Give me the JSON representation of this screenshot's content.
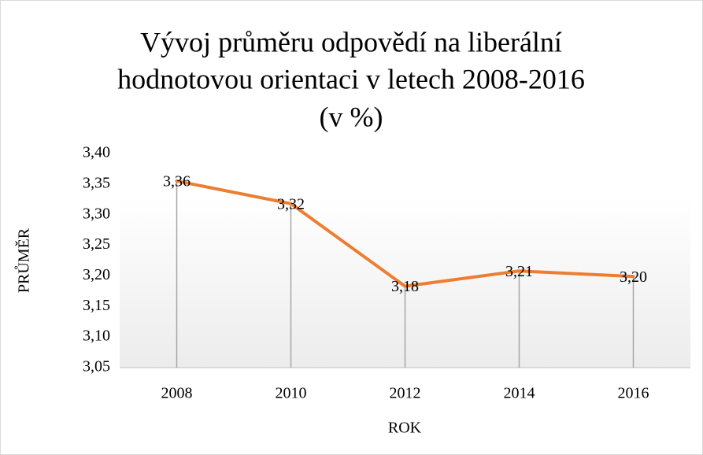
{
  "chart_data": {
    "type": "line",
    "title": [
      "Vývoj průměru odpovědí na liberální",
      "hodnotovou orientaci v letech 2008-2016",
      "(v %)"
    ],
    "x_label": "ROK",
    "y_label": "PRŮMĚR",
    "categories": [
      "2008",
      "2010",
      "2012",
      "2014",
      "2016"
    ],
    "series": [
      {
        "name": "PRŮMĚR",
        "color": "#ed7d31",
        "values": [
          3.355,
          3.318,
          3.183,
          3.208,
          3.199
        ],
        "value_labels": [
          "3,36",
          "3,32",
          "3,18",
          "3,21",
          "3,20"
        ]
      }
    ],
    "ylim": [
      3.05,
      3.4
    ],
    "yticks": [
      {
        "value": 3.05,
        "label": "3,05"
      },
      {
        "value": 3.1,
        "label": "3,10"
      },
      {
        "value": 3.15,
        "label": "3,15"
      },
      {
        "value": 3.2,
        "label": "3,20"
      },
      {
        "value": 3.25,
        "label": "3,25"
      },
      {
        "value": 3.3,
        "label": "3,30"
      },
      {
        "value": 3.35,
        "label": "3,35"
      },
      {
        "value": 3.4,
        "label": "3,40"
      }
    ],
    "drop_lines": true
  }
}
